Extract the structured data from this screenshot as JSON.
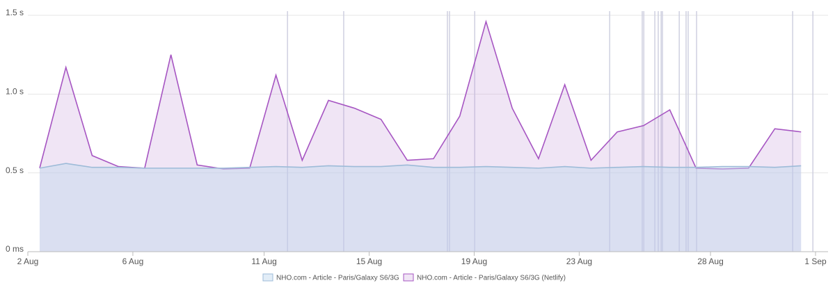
{
  "chart_data": {
    "type": "area",
    "x": [
      2.45,
      3.45,
      4.45,
      5.45,
      6.45,
      7.45,
      8.45,
      9.45,
      10.45,
      11.45,
      12.45,
      13.45,
      14.45,
      15.45,
      16.45,
      17.45,
      18.45,
      19.45,
      20.45,
      21.45,
      22.45,
      23.45,
      24.45,
      25.45,
      26.45,
      27.45,
      28.45,
      29.45,
      30.45,
      31.45
    ],
    "series": [
      {
        "name": "NHO.com - Article - Paris/Galaxy S6/3G",
        "color": "#9dbbd8",
        "fill": "rgba(190,214,238,0.45)",
        "values": [
          0.53,
          0.56,
          0.535,
          0.535,
          0.53,
          0.53,
          0.53,
          0.53,
          0.535,
          0.54,
          0.535,
          0.545,
          0.54,
          0.54,
          0.55,
          0.535,
          0.535,
          0.54,
          0.535,
          0.53,
          0.54,
          0.53,
          0.535,
          0.54,
          0.535,
          0.535,
          0.54,
          0.54,
          0.535,
          0.545
        ]
      },
      {
        "name": "NHO.com - Article - Paris/Galaxy S6/3G (Netlify)",
        "color": "#a655c2",
        "fill": "rgba(196,150,214,0.25)",
        "values": [
          0.53,
          1.17,
          0.61,
          0.54,
          0.53,
          1.25,
          0.55,
          0.525,
          0.53,
          1.12,
          0.58,
          0.96,
          0.91,
          0.84,
          0.58,
          0.59,
          0.86,
          1.46,
          0.91,
          0.59,
          1.06,
          0.58,
          0.76,
          0.8,
          0.9,
          0.53,
          0.525,
          0.53,
          0.78,
          0.76
        ]
      }
    ],
    "event_x": [
      11.89,
      14.03,
      17.98,
      18.06,
      19.02,
      24.16,
      25.4,
      25.46,
      25.88,
      26.01,
      26.12,
      26.17,
      26.81,
      27.07,
      27.15,
      27.47,
      31.13,
      31.9
    ],
    "xlim": [
      2,
      32
    ],
    "xticks": [
      {
        "value": 2,
        "label": "2 Aug"
      },
      {
        "value": 6,
        "label": "6 Aug"
      },
      {
        "value": 11,
        "label": "11 Aug"
      },
      {
        "value": 15,
        "label": "15 Aug"
      },
      {
        "value": 19,
        "label": "19 Aug"
      },
      {
        "value": 23,
        "label": "23 Aug"
      },
      {
        "value": 28,
        "label": "28 Aug"
      },
      {
        "value": 32,
        "label": "1 Sep"
      }
    ],
    "ylim": [
      0,
      1.5
    ],
    "yticks": [
      {
        "value": 0,
        "label": "0 ms"
      },
      {
        "value": 0.5,
        "label": "0.5 s"
      },
      {
        "value": 1,
        "label": "1.0 s"
      },
      {
        "value": 1.5,
        "label": "1.5 s"
      }
    ],
    "grid": true
  }
}
